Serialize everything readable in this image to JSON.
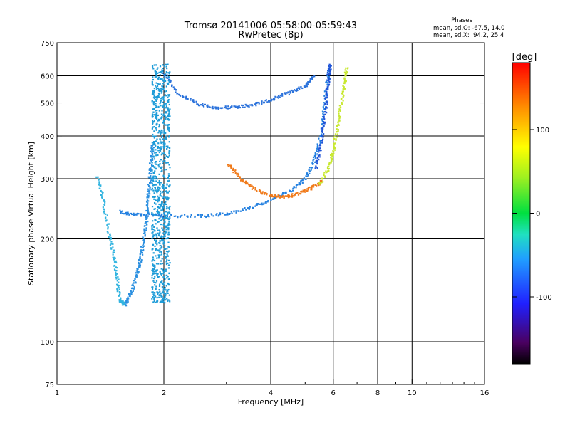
{
  "chart_data": {
    "type": "scatter",
    "title": "Tromsø 20141006 05:58:00-05:59:43",
    "subtitle": "RwPretec (8p)",
    "xlabel": "Frequency [MHz]",
    "ylabel": "Stationary phase Virtual Height [km]",
    "x_scale": "log",
    "y_scale": "log",
    "xlim": [
      1,
      16
    ],
    "ylim": [
      75,
      750
    ],
    "x_ticks": [
      1,
      2,
      4,
      6,
      8,
      10,
      16
    ],
    "x_tick_labels": [
      "1",
      "2",
      "4",
      "6",
      "8",
      "10",
      "16"
    ],
    "y_ticks": [
      75,
      100,
      200,
      300,
      400,
      500,
      600,
      750
    ],
    "y_tick_labels": [
      "75",
      "100",
      "200",
      "300",
      "400",
      "500",
      "600",
      "750"
    ],
    "x_gridlines": [
      2,
      4,
      6,
      8,
      10
    ],
    "y_gridlines": [
      100,
      200,
      300,
      400,
      500,
      600
    ],
    "stats": {
      "heading": "Phases",
      "line_o": "mean, sd,O: -67.5, 14.0",
      "line_x": "mean, sd,X:  94.2, 25.4"
    },
    "colorbar": {
      "label": "[deg]",
      "min": -180,
      "max": 180,
      "ticks": [
        100,
        0,
        -100
      ],
      "tick_labels": [
        "100",
        "0",
        "-100"
      ],
      "colormap": "rainbow: black at -180, violet, blue, cyan, green at 0, yellow, orange, red at 180"
    },
    "series": [
      {
        "trace": "vertical-column",
        "color": "#1e9cd8",
        "x_range": [
          1.85,
          2.08
        ],
        "y_range": [
          130,
          650
        ],
        "count": 900
      },
      {
        "trace": "left-rising-curve",
        "color": "#2a8fe0",
        "points": [
          [
            1.55,
            128
          ],
          [
            1.62,
            140
          ],
          [
            1.68,
            158
          ],
          [
            1.72,
            175
          ],
          [
            1.75,
            195
          ],
          [
            1.78,
            220
          ],
          [
            1.8,
            250
          ],
          [
            1.82,
            285
          ],
          [
            1.84,
            330
          ],
          [
            1.86,
            380
          ]
        ]
      },
      {
        "trace": "lower-U-trace",
        "color": "#2380e0",
        "points": [
          [
            1.5,
            240
          ],
          [
            1.7,
            235
          ],
          [
            2.0,
            234
          ],
          [
            2.5,
            233
          ],
          [
            3.0,
            237
          ],
          [
            3.5,
            247
          ],
          [
            4.0,
            260
          ],
          [
            4.5,
            275
          ],
          [
            5.0,
            300
          ],
          [
            5.3,
            340
          ],
          [
            5.5,
            390
          ],
          [
            5.65,
            470
          ],
          [
            5.75,
            560
          ],
          [
            5.85,
            640
          ]
        ]
      },
      {
        "trace": "upper-U-trace",
        "color": "#2b72db",
        "points": [
          [
            2.0,
            610
          ],
          [
            2.2,
            530
          ],
          [
            2.5,
            495
          ],
          [
            2.8,
            485
          ],
          [
            3.2,
            485
          ],
          [
            3.6,
            495
          ],
          [
            4.0,
            510
          ],
          [
            4.5,
            535
          ],
          [
            5.0,
            560
          ],
          [
            5.3,
            600
          ]
        ]
      },
      {
        "trace": "orange-arc",
        "color": "#f07a1a",
        "points": [
          [
            3.05,
            330
          ],
          [
            3.3,
            300
          ],
          [
            3.6,
            280
          ],
          [
            4.0,
            268
          ],
          [
            4.4,
            265
          ],
          [
            4.8,
            272
          ],
          [
            5.2,
            282
          ],
          [
            5.6,
            295
          ]
        ]
      },
      {
        "trace": "yellow-green-column",
        "color": "#c8e830",
        "points": [
          [
            5.5,
            290
          ],
          [
            5.8,
            320
          ],
          [
            6.0,
            360
          ],
          [
            6.15,
            420
          ],
          [
            6.3,
            490
          ],
          [
            6.45,
            560
          ],
          [
            6.55,
            640
          ]
        ]
      },
      {
        "trace": "blue-column-right",
        "color": "#1f54d8",
        "points": [
          [
            5.35,
            320
          ],
          [
            5.55,
            380
          ],
          [
            5.68,
            450
          ],
          [
            5.75,
            520
          ],
          [
            5.82,
            600
          ],
          [
            5.88,
            650
          ]
        ]
      },
      {
        "trace": "cyan-low-branch",
        "color": "#32b4e0",
        "points": [
          [
            1.3,
            305
          ],
          [
            1.35,
            260
          ],
          [
            1.4,
            210
          ],
          [
            1.45,
            175
          ],
          [
            1.48,
            150
          ],
          [
            1.5,
            133
          ],
          [
            1.55,
            128
          ]
        ]
      }
    ]
  }
}
